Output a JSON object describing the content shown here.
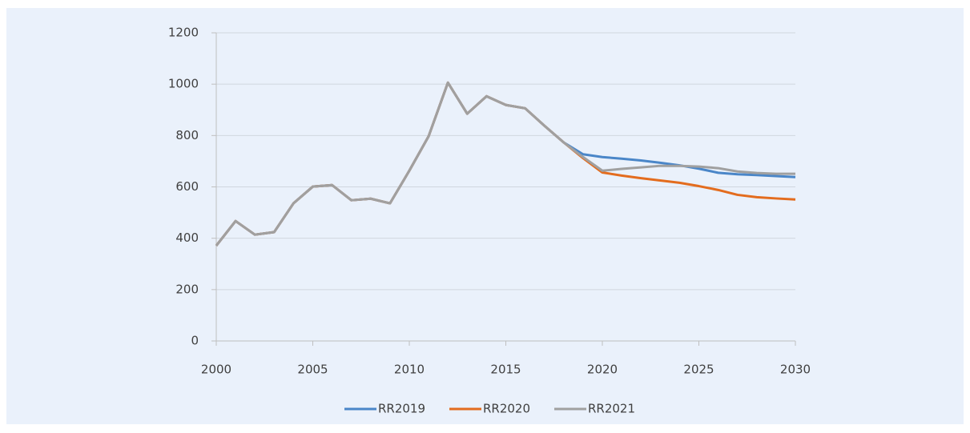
{
  "chart_data": {
    "type": "line",
    "x": [
      2000,
      2001,
      2002,
      2003,
      2004,
      2005,
      2006,
      2007,
      2008,
      2009,
      2010,
      2011,
      2012,
      2013,
      2014,
      2015,
      2016,
      2017,
      2018,
      2019,
      2020,
      2021,
      2022,
      2023,
      2024,
      2025,
      2026,
      2027,
      2028,
      2029,
      2030
    ],
    "series": [
      {
        "name": "RR2019",
        "color": "#4a86c8",
        "values": [
          371,
          467,
          414,
          424,
          536,
          601,
          607,
          548,
          554,
          536,
          663,
          797,
          1006,
          885,
          953,
          919,
          906,
          838,
          773,
          727,
          716,
          710,
          703,
          694,
          684,
          671,
          655,
          649,
          646,
          642,
          638
        ]
      },
      {
        "name": "RR2020",
        "color": "#e36c1e",
        "values": [
          371,
          467,
          414,
          424,
          536,
          601,
          607,
          548,
          554,
          536,
          663,
          797,
          1006,
          885,
          953,
          919,
          906,
          838,
          773,
          712,
          656,
          644,
          634,
          625,
          616,
          603,
          588,
          569,
          560,
          555,
          551
        ]
      },
      {
        "name": "RR2021",
        "color": "#a0a0a0",
        "values": [
          371,
          467,
          414,
          424,
          536,
          601,
          607,
          548,
          554,
          536,
          663,
          797,
          1006,
          885,
          953,
          919,
          906,
          838,
          773,
          716,
          663,
          670,
          676,
          682,
          682,
          679,
          673,
          660,
          654,
          651,
          651
        ]
      }
    ],
    "xlim": [
      2000,
      2030
    ],
    "xticks": [
      2000,
      2005,
      2010,
      2015,
      2020,
      2025,
      2030
    ],
    "ylim": [
      0,
      1200
    ],
    "yticks": [
      0,
      200,
      400,
      600,
      800,
      1000,
      1200
    ],
    "grid": true,
    "legend": "bottom"
  }
}
